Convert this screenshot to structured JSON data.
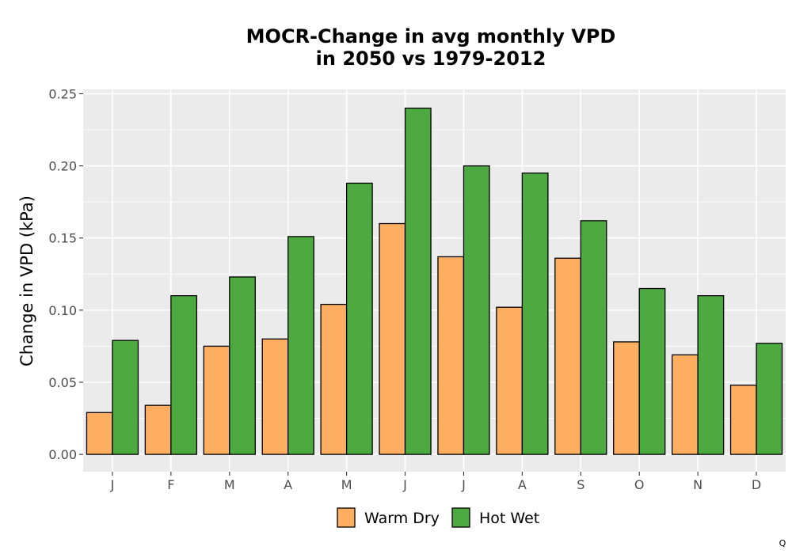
{
  "chart_data": {
    "type": "bar",
    "title_lines": [
      "MOCR-Change in avg monthly VPD",
      "in 2050 vs 1979-2012"
    ],
    "xlabel": "",
    "ylabel": "Change in VPD (kPa)",
    "categories": [
      "J",
      "F",
      "M",
      "A",
      "M",
      "J",
      "J",
      "A",
      "S",
      "O",
      "N",
      "D"
    ],
    "series": [
      {
        "name": "Warm Dry",
        "color": "#fdae61",
        "values": [
          0.029,
          0.034,
          0.075,
          0.08,
          0.104,
          0.16,
          0.137,
          0.102,
          0.136,
          0.078,
          0.069,
          0.048
        ]
      },
      {
        "name": "Hot Wet",
        "color": "#4daa40",
        "values": [
          0.079,
          0.11,
          0.123,
          0.151,
          0.188,
          0.24,
          0.2,
          0.195,
          0.162,
          0.115,
          0.11,
          0.077
        ]
      }
    ],
    "ylim": [
      -0.012,
      0.253
    ],
    "yticks": [
      0.0,
      0.05,
      0.1,
      0.15,
      0.2,
      0.25
    ],
    "ytick_labels": [
      "0.00",
      "0.05",
      "0.10",
      "0.15",
      "0.20",
      "0.25"
    ],
    "grid": true,
    "legend_position": "bottom",
    "panel_background": "#ebebeb",
    "corner_text": "Q"
  }
}
